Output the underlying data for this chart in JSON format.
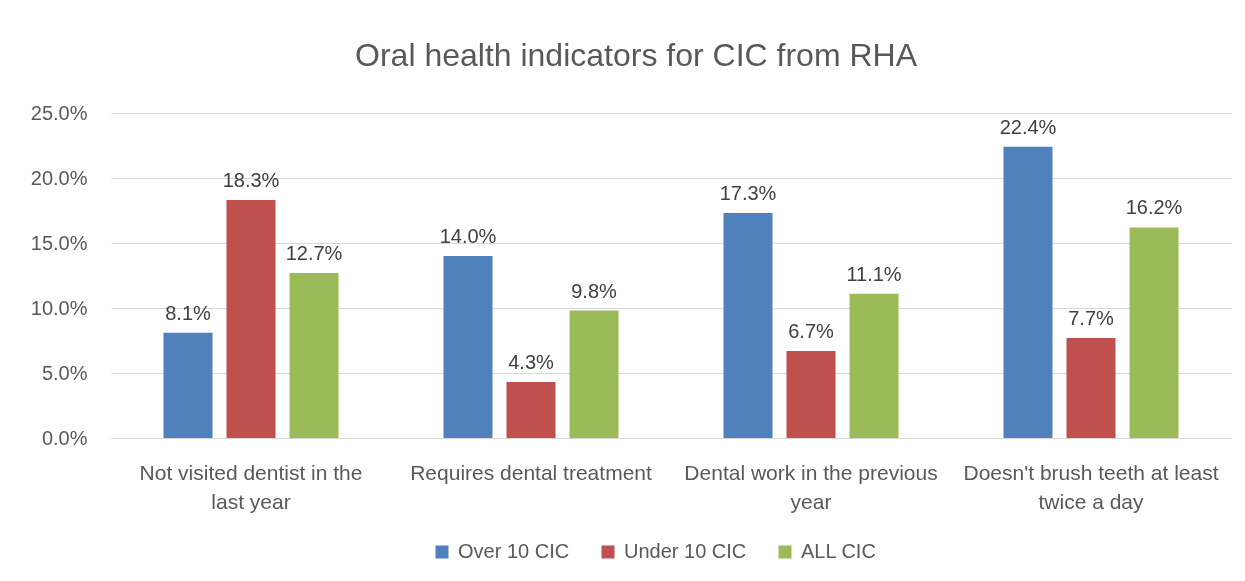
{
  "chart_data": {
    "type": "bar",
    "title": "Oral health indicators for CIC from RHA",
    "categories": [
      "Not visited dentist in the last year",
      "Requires dental treatment",
      "Dental work in the previous year",
      "Doesn't brush teeth at least twice a day"
    ],
    "series": [
      {
        "name": "Over 10 CIC",
        "color": "#4f81bd",
        "values": [
          8.1,
          14.0,
          17.3,
          22.4
        ],
        "value_labels": [
          "8.1%",
          "14.0%",
          "17.3%",
          "22.4%"
        ]
      },
      {
        "name": "Under 10 CIC",
        "color": "#c0504d",
        "values": [
          18.3,
          4.3,
          6.7,
          7.7
        ],
        "value_labels": [
          "18.3%",
          "4.3%",
          "6.7%",
          "7.7%"
        ]
      },
      {
        "name": "ALL CIC",
        "color": "#9bbb59",
        "values": [
          12.7,
          9.8,
          11.1,
          16.2
        ],
        "value_labels": [
          "12.7%",
          "9.8%",
          "11.1%",
          "16.2%"
        ]
      }
    ],
    "ylim": [
      0,
      25
    ],
    "yticks": [
      {
        "value": 0,
        "label": "0.0%"
      },
      {
        "value": 5,
        "label": "5.0%"
      },
      {
        "value": 10,
        "label": "10.0%"
      },
      {
        "value": 15,
        "label": "15.0%"
      },
      {
        "value": 20,
        "label": "20.0%"
      },
      {
        "value": 25,
        "label": "25.0%"
      }
    ],
    "grid": "y",
    "legend": "bottom"
  }
}
